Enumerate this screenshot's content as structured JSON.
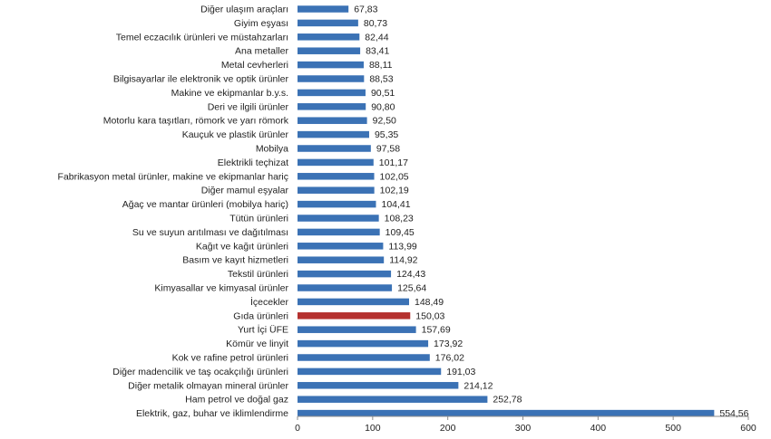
{
  "chart_data": {
    "type": "bar",
    "orientation": "horizontal",
    "title": "",
    "xlabel": "",
    "ylabel": "",
    "xlim": [
      0,
      600
    ],
    "x_ticks": [
      "0",
      "100",
      "200",
      "300",
      "400",
      "500",
      "600"
    ],
    "grid": false,
    "legend": "none",
    "colors": {
      "bar": "#3b72b5",
      "highlight": "#b5312f",
      "axis": "#8c8c8c",
      "text": "#222222"
    },
    "highlight_index": 22,
    "categories": [
      "Diğer ulaşım araçları",
      "Giyim eşyası",
      "Temel eczacılık ürünleri ve müstahzarları",
      "Ana metaller",
      "Metal cevherleri",
      "Bilgisayarlar ile elektronik ve optik ürünler",
      "Makine ve ekipmanlar b.y.s.",
      "Deri ve ilgili ürünler",
      "Motorlu kara taşıtları, römork ve yarı römork",
      "Kauçuk ve plastik ürünler",
      "Mobilya",
      "Elektrikli teçhizat",
      "Fabrikasyon metal ürünler, makine ve ekipmanlar hariç",
      "Diğer mamul eşyalar",
      "Ağaç ve mantar ürünleri (mobilya hariç)",
      "Tütün ürünleri",
      "Su ve suyun arıtılması ve dağıtılması",
      "Kağıt ve kağıt ürünleri",
      "Basım ve kayıt hizmetleri",
      "Tekstil ürünleri",
      "Kimyasallar ve kimyasal ürünler",
      "İçecekler",
      "Gıda ürünleri",
      "Yurt İçi ÜFE",
      "Kömür ve linyit",
      "Kok ve rafine petrol ürünleri",
      "Diğer madencilik ve taş ocakçılığı ürünleri",
      "Diğer metalik olmayan mineral ürünler",
      "Ham petrol ve doğal gaz",
      "Elektrik, gaz, buhar ve iklimlendirme"
    ],
    "values": [
      67.83,
      80.73,
      82.44,
      83.41,
      88.11,
      88.53,
      90.51,
      90.8,
      92.5,
      95.35,
      97.58,
      101.17,
      102.05,
      102.19,
      104.41,
      108.23,
      109.45,
      113.99,
      114.92,
      124.43,
      125.64,
      148.49,
      150.03,
      157.69,
      173.92,
      176.02,
      191.03,
      214.12,
      252.78,
      554.56
    ],
    "value_labels": [
      "67,83",
      "80,73",
      "82,44",
      "83,41",
      "88,11",
      "88,53",
      "90,51",
      "90,80",
      "92,50",
      "95,35",
      "97,58",
      "101,17",
      "102,05",
      "102,19",
      "104,41",
      "108,23",
      "109,45",
      "113,99",
      "114,92",
      "124,43",
      "125,64",
      "148,49",
      "150,03",
      "157,69",
      "173,92",
      "176,02",
      "191,03",
      "214,12",
      "252,78",
      "554,56"
    ]
  }
}
